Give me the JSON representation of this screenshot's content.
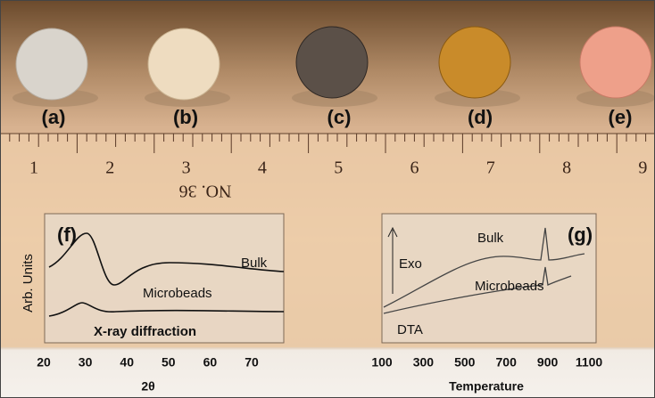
{
  "samples": [
    "(a)",
    "(b)",
    "(c)",
    "(d)",
    "(e)"
  ],
  "ruler": {
    "numbers": [
      "1",
      "2",
      "3",
      "4",
      "5",
      "6",
      "7",
      "8",
      "9"
    ],
    "text": "NO. 36"
  },
  "insets": [
    {
      "label": "(f)",
      "y_label": "Arb. Units",
      "curves": [
        "Bulk",
        "Microbeads"
      ],
      "caption": "X-ray diffraction",
      "x_ticks": [
        "20",
        "30",
        "40",
        "50",
        "60",
        "70"
      ],
      "x_label": "2θ"
    },
    {
      "label": "(g)",
      "arrow_label": "Exo",
      "curves": [
        "Bulk",
        "Microbeads"
      ],
      "caption": "DTA",
      "x_ticks": [
        "100",
        "300",
        "500",
        "700",
        "900",
        "1100"
      ],
      "x_label": "Temperature"
    }
  ]
}
